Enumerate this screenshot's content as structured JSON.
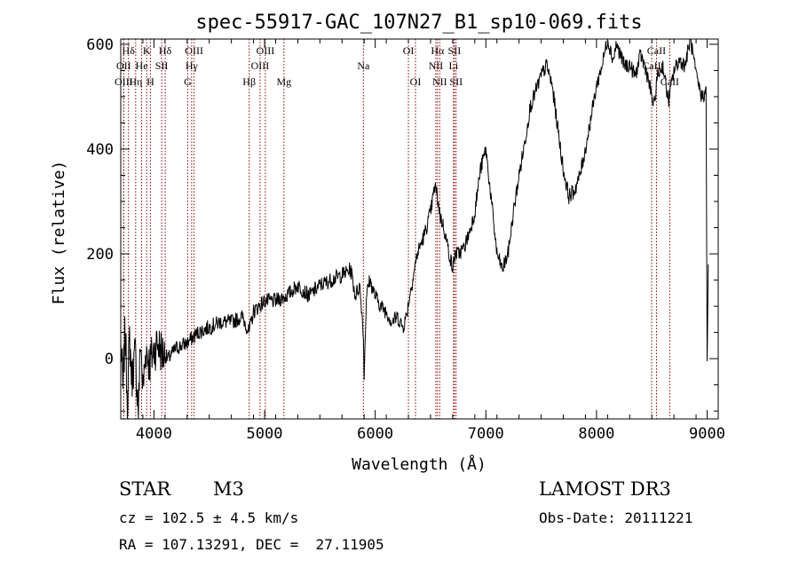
{
  "chart_data": {
    "type": "line",
    "title": "spec-55917-GAC_107N27_B1_sp10-069.fits",
    "xlabel": "Wavelength (Å)",
    "ylabel": "Flux (relative)",
    "xlim": [
      3700,
      9100
    ],
    "ylim": [
      -115,
      610
    ],
    "xticks": [
      4000,
      5000,
      6000,
      7000,
      8000,
      9000
    ],
    "yticks": [
      0,
      200,
      400,
      600
    ],
    "grid": false,
    "spectrum_anchors": {
      "x": [
        3700,
        3720,
        3740,
        3760,
        3780,
        3800,
        3830,
        3860,
        3880,
        3900,
        3930,
        3960,
        3990,
        4030,
        4080,
        4130,
        4200,
        4300,
        4400,
        4500,
        4600,
        4700,
        4800,
        4860,
        4900,
        5000,
        5100,
        5200,
        5300,
        5400,
        5500,
        5600,
        5700,
        5780,
        5820,
        5860,
        5890,
        5900,
        5920,
        5950,
        6000,
        6050,
        6100,
        6150,
        6200,
        6250,
        6280,
        6320,
        6380,
        6450,
        6500,
        6540,
        6560,
        6590,
        6620,
        6660,
        6700,
        6720,
        6750,
        6800,
        6850,
        6900,
        6950,
        7000,
        7050,
        7100,
        7150,
        7200,
        7250,
        7300,
        7350,
        7400,
        7450,
        7500,
        7550,
        7600,
        7650,
        7700,
        7750,
        7800,
        7850,
        7900,
        7950,
        8000,
        8050,
        8100,
        8150,
        8180,
        8250,
        8300,
        8350,
        8400,
        8450,
        8500,
        8520,
        8550,
        8600,
        8650,
        8700,
        8750,
        8800,
        8850,
        8900,
        8950,
        8990,
        9000,
        9010
      ],
      "y": [
        30,
        -60,
        60,
        -80,
        40,
        -40,
        10,
        -100,
        40,
        -60,
        20,
        -10,
        10,
        30,
        10,
        0,
        20,
        30,
        50,
        60,
        70,
        70,
        80,
        50,
        90,
        110,
        110,
        120,
        140,
        120,
        140,
        150,
        160,
        170,
        120,
        140,
        60,
        -30,
        120,
        150,
        120,
        100,
        90,
        70,
        80,
        60,
        80,
        130,
        200,
        240,
        280,
        330,
        310,
        270,
        250,
        210,
        170,
        200,
        200,
        210,
        240,
        280,
        360,
        400,
        300,
        200,
        170,
        200,
        280,
        350,
        410,
        480,
        510,
        540,
        560,
        520,
        440,
        360,
        310,
        320,
        350,
        400,
        460,
        520,
        560,
        610,
        570,
        600,
        560,
        560,
        540,
        580,
        550,
        500,
        480,
        540,
        560,
        490,
        550,
        570,
        560,
        610,
        540,
        500,
        510,
        0,
        180
      ],
      "noise_amplitude": 15
    },
    "emission_lines": [
      {
        "label": "Hδ",
        "x": 3770,
        "row": 1,
        "style": "dotted"
      },
      {
        "label": "K",
        "x": 3934,
        "row": 1,
        "style": "dotted"
      },
      {
        "label": "Hδ",
        "x": 4102,
        "row": 1,
        "style": "dotted"
      },
      {
        "label": "OIII",
        "x": 4363,
        "row": 1,
        "style": "dotted"
      },
      {
        "label": "OIII",
        "x": 5007,
        "row": 1,
        "style": "dotted"
      },
      {
        "label": "OI",
        "x": 6300,
        "row": 1,
        "style": "dotted"
      },
      {
        "label": "Hα",
        "x": 6563,
        "row": 1,
        "style": "dotted"
      },
      {
        "label": "SII",
        "x": 6716,
        "row": 1,
        "style": "dotted"
      },
      {
        "label": "CaII",
        "x": 8542,
        "row": 1,
        "style": "dotted"
      },
      {
        "label": "OII",
        "x": 3727,
        "row": 2,
        "style": "dotted"
      },
      {
        "label": "He",
        "x": 3889,
        "row": 2,
        "style": "dotted"
      },
      {
        "label": "SII",
        "x": 4070,
        "row": 2,
        "style": "dotted"
      },
      {
        "label": "Hγ",
        "x": 4341,
        "row": 2,
        "style": "dotted"
      },
      {
        "label": "OIII",
        "x": 4959,
        "row": 2,
        "style": "dotted"
      },
      {
        "label": "Na",
        "x": 5893,
        "row": 2,
        "style": "dotted"
      },
      {
        "label": "NII",
        "x": 6548,
        "row": 2,
        "style": "dotted"
      },
      {
        "label": "Li",
        "x": 6708,
        "row": 2,
        "style": "dotted"
      },
      {
        "label": "CaII",
        "x": 8498,
        "row": 2,
        "style": "dotted"
      },
      {
        "label": "OIII",
        "x": 3727,
        "row": 3,
        "style": "dotted"
      },
      {
        "label": "Hη",
        "x": 3835,
        "row": 3,
        "style": "dotted"
      },
      {
        "label": "H",
        "x": 3968,
        "row": 3,
        "style": "dotted"
      },
      {
        "label": "G",
        "x": 4305,
        "row": 3,
        "style": "dotted"
      },
      {
        "label": "Hβ",
        "x": 4861,
        "row": 3,
        "style": "dotted"
      },
      {
        "label": "Mg",
        "x": 5175,
        "row": 3,
        "style": "dotted"
      },
      {
        "label": "OI",
        "x": 6364,
        "row": 3,
        "style": "dotted"
      },
      {
        "label": "NII",
        "x": 6583,
        "row": 3,
        "style": "dotted"
      },
      {
        "label": "SII",
        "x": 6731,
        "row": 3,
        "style": "dotted"
      },
      {
        "label": "CaII",
        "x": 8662,
        "row": 3,
        "style": "dotted"
      }
    ],
    "line_color": "#000000",
    "marker_color": "#8b0000"
  },
  "info": {
    "class": "STAR",
    "subclass": "M3",
    "survey": "LAMOST DR3",
    "cz": "cz = 102.5 ± 4.5 km/s",
    "obs_date": "Obs-Date: 20111221",
    "radec": "RA = 107.13291, DEC =  27.11905"
  }
}
